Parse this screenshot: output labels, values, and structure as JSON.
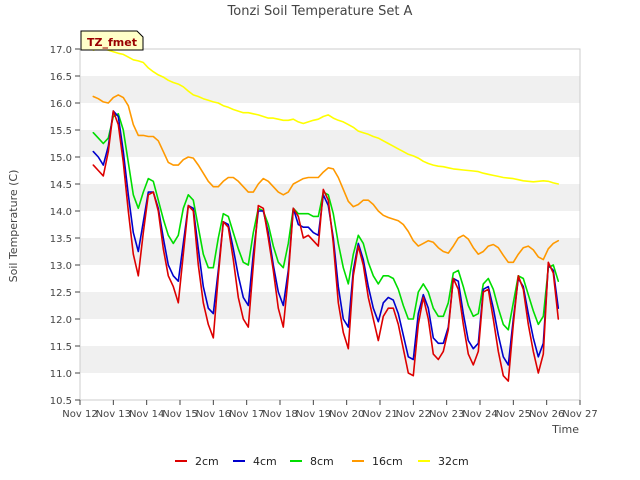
{
  "chart_data": {
    "type": "line",
    "title": "Tonzi Soil Temperature Set A",
    "xlabel": "Time",
    "ylabel": "Soil Temperature (C)",
    "xlim": [
      12,
      27
    ],
    "ylim": [
      10.5,
      17.0
    ],
    "x_ticks": [
      12,
      13,
      14,
      15,
      16,
      17,
      18,
      19,
      20,
      21,
      22,
      23,
      24,
      25,
      26,
      27
    ],
    "x_tick_labels": [
      "Nov 12",
      "Nov 13",
      "Nov 14",
      "Nov 15",
      "Nov 16",
      "Nov 17",
      "Nov 18",
      "Nov 19",
      "Nov 20",
      "Nov 21",
      "Nov 22",
      "Nov 23",
      "Nov 24",
      "Nov 25",
      "Nov 26",
      "Nov 27"
    ],
    "y_ticks": [
      10.5,
      11.0,
      11.5,
      12.0,
      12.5,
      13.0,
      13.5,
      14.0,
      14.5,
      15.0,
      15.5,
      16.0,
      16.5,
      17.0
    ],
    "y_tick_labels": [
      "10.5",
      "11.0",
      "11.5",
      "12.0",
      "12.5",
      "13.0",
      "13.5",
      "14.0",
      "14.5",
      "15.0",
      "15.5",
      "16.0",
      "16.5",
      "17.0"
    ],
    "grid": "horizontal alternating bands",
    "legend_position": "bottom-center",
    "annotation": "TZ_fmet",
    "series": [
      {
        "name": "2cm",
        "color": "#dd0000",
        "x": [
          12.4,
          12.55,
          12.7,
          12.85,
          13.0,
          13.15,
          13.3,
          13.45,
          13.6,
          13.75,
          13.9,
          14.05,
          14.2,
          14.35,
          14.5,
          14.65,
          14.8,
          14.95,
          15.1,
          15.25,
          15.4,
          15.55,
          15.7,
          15.85,
          16.0,
          16.15,
          16.3,
          16.45,
          16.6,
          16.75,
          16.9,
          17.05,
          17.2,
          17.35,
          17.5,
          17.65,
          17.8,
          17.95,
          18.1,
          18.25,
          18.4,
          18.55,
          18.7,
          18.85,
          19.0,
          19.15,
          19.3,
          19.45,
          19.6,
          19.75,
          19.9,
          20.05,
          20.2,
          20.35,
          20.5,
          20.65,
          20.8,
          20.95,
          21.1,
          21.25,
          21.4,
          21.55,
          21.7,
          21.85,
          22.0,
          22.15,
          22.3,
          22.45,
          22.6,
          22.75,
          22.9,
          23.05,
          23.2,
          23.35,
          23.5,
          23.65,
          23.8,
          23.95,
          24.1,
          24.25,
          24.4,
          24.55,
          24.7,
          24.85,
          25.0,
          25.15,
          25.3,
          25.45,
          25.6,
          25.75,
          25.9,
          26.05,
          26.2,
          26.35
        ],
        "values": [
          14.85,
          14.75,
          14.65,
          15.1,
          15.85,
          15.6,
          14.9,
          14.0,
          13.2,
          12.8,
          13.6,
          14.3,
          14.35,
          14.0,
          13.3,
          12.8,
          12.6,
          12.3,
          13.2,
          14.1,
          14.0,
          13.0,
          12.3,
          11.9,
          11.65,
          12.8,
          13.8,
          13.7,
          13.1,
          12.4,
          12.0,
          11.85,
          13.0,
          14.1,
          14.05,
          13.5,
          12.9,
          12.2,
          11.85,
          12.8,
          14.05,
          13.9,
          13.5,
          13.55,
          13.45,
          13.35,
          14.4,
          14.2,
          13.4,
          12.3,
          11.75,
          11.45,
          12.8,
          13.35,
          13.0,
          12.4,
          12.0,
          11.6,
          12.05,
          12.2,
          12.2,
          11.9,
          11.45,
          11.0,
          10.95,
          11.9,
          12.4,
          12.0,
          11.35,
          11.25,
          11.4,
          11.8,
          12.75,
          12.55,
          11.9,
          11.35,
          11.15,
          11.4,
          12.5,
          12.55,
          12.0,
          11.4,
          10.95,
          10.85,
          11.9,
          12.8,
          12.55,
          11.9,
          11.4,
          11.0,
          11.35,
          13.05,
          12.85,
          12.0
        ]
      },
      {
        "name": "4cm",
        "color": "#0000cc",
        "x": [
          12.4,
          12.55,
          12.7,
          12.85,
          13.0,
          13.15,
          13.3,
          13.45,
          13.6,
          13.75,
          13.9,
          14.05,
          14.2,
          14.35,
          14.5,
          14.65,
          14.8,
          14.95,
          15.1,
          15.25,
          15.4,
          15.55,
          15.7,
          15.85,
          16.0,
          16.15,
          16.3,
          16.45,
          16.6,
          16.75,
          16.9,
          17.05,
          17.2,
          17.35,
          17.5,
          17.65,
          17.8,
          17.95,
          18.1,
          18.25,
          18.4,
          18.55,
          18.7,
          18.85,
          19.0,
          19.15,
          19.3,
          19.45,
          19.6,
          19.75,
          19.9,
          20.05,
          20.2,
          20.35,
          20.5,
          20.65,
          20.8,
          20.95,
          21.1,
          21.25,
          21.4,
          21.55,
          21.7,
          21.85,
          22.0,
          22.15,
          22.3,
          22.45,
          22.6,
          22.75,
          22.9,
          23.05,
          23.2,
          23.35,
          23.5,
          23.65,
          23.8,
          23.95,
          24.1,
          24.25,
          24.4,
          24.55,
          24.7,
          24.85,
          25.0,
          25.15,
          25.3,
          25.45,
          25.6,
          25.75,
          25.9,
          26.05,
          26.2,
          26.35
        ],
        "values": [
          15.1,
          15.0,
          14.85,
          15.2,
          15.85,
          15.75,
          15.1,
          14.3,
          13.6,
          13.25,
          13.8,
          14.35,
          14.35,
          14.05,
          13.5,
          13.0,
          12.8,
          12.7,
          13.4,
          14.1,
          14.05,
          13.3,
          12.6,
          12.2,
          12.1,
          12.9,
          13.8,
          13.75,
          13.3,
          12.8,
          12.4,
          12.25,
          13.2,
          14.0,
          14.0,
          13.6,
          13.0,
          12.5,
          12.25,
          12.9,
          14.05,
          13.75,
          13.7,
          13.7,
          13.6,
          13.55,
          14.3,
          14.1,
          13.5,
          12.6,
          12.0,
          11.85,
          12.9,
          13.4,
          13.1,
          12.6,
          12.2,
          11.95,
          12.3,
          12.4,
          12.35,
          12.1,
          11.7,
          11.3,
          11.25,
          12.1,
          12.45,
          12.2,
          11.65,
          11.55,
          11.55,
          11.85,
          12.75,
          12.7,
          12.1,
          11.6,
          11.45,
          11.55,
          12.55,
          12.6,
          12.2,
          11.7,
          11.3,
          11.15,
          12.0,
          12.75,
          12.6,
          12.1,
          11.65,
          11.3,
          11.55,
          13.0,
          12.9,
          12.2
        ]
      },
      {
        "name": "8cm",
        "color": "#00dd00",
        "x": [
          12.4,
          12.55,
          12.7,
          12.85,
          13.0,
          13.15,
          13.3,
          13.45,
          13.6,
          13.75,
          13.9,
          14.05,
          14.2,
          14.35,
          14.5,
          14.65,
          14.8,
          14.95,
          15.1,
          15.25,
          15.4,
          15.55,
          15.7,
          15.85,
          16.0,
          16.15,
          16.3,
          16.45,
          16.6,
          16.75,
          16.9,
          17.05,
          17.2,
          17.35,
          17.5,
          17.65,
          17.8,
          17.95,
          18.1,
          18.25,
          18.4,
          18.55,
          18.7,
          18.85,
          19.0,
          19.15,
          19.3,
          19.45,
          19.6,
          19.75,
          19.9,
          20.05,
          20.2,
          20.35,
          20.5,
          20.65,
          20.8,
          20.95,
          21.1,
          21.25,
          21.4,
          21.55,
          21.7,
          21.85,
          22.0,
          22.15,
          22.3,
          22.45,
          22.6,
          22.75,
          22.9,
          23.05,
          23.2,
          23.35,
          23.5,
          23.65,
          23.8,
          23.95,
          24.1,
          24.25,
          24.4,
          24.55,
          24.7,
          24.85,
          25.0,
          25.15,
          25.3,
          25.45,
          25.6,
          25.75,
          25.9,
          26.05,
          26.2,
          26.35
        ],
        "values": [
          15.45,
          15.35,
          15.25,
          15.35,
          15.75,
          15.8,
          15.5,
          14.9,
          14.3,
          14.05,
          14.35,
          14.6,
          14.55,
          14.2,
          13.85,
          13.55,
          13.4,
          13.55,
          14.05,
          14.3,
          14.2,
          13.7,
          13.2,
          12.95,
          12.95,
          13.5,
          13.95,
          13.9,
          13.6,
          13.3,
          13.05,
          13.0,
          13.6,
          14.05,
          14.0,
          13.75,
          13.35,
          13.05,
          12.95,
          13.4,
          14.05,
          13.95,
          13.95,
          13.95,
          13.9,
          13.9,
          14.35,
          14.3,
          13.95,
          13.4,
          12.95,
          12.65,
          13.2,
          13.55,
          13.4,
          13.05,
          12.8,
          12.65,
          12.8,
          12.8,
          12.75,
          12.55,
          12.25,
          12.0,
          12.0,
          12.5,
          12.65,
          12.5,
          12.2,
          12.05,
          12.05,
          12.3,
          12.85,
          12.9,
          12.6,
          12.25,
          12.05,
          12.1,
          12.65,
          12.75,
          12.55,
          12.2,
          11.9,
          11.8,
          12.3,
          12.8,
          12.75,
          12.45,
          12.15,
          11.9,
          12.05,
          12.95,
          13.0,
          12.7
        ]
      },
      {
        "name": "16cm",
        "color": "#ff9900",
        "x": [
          12.4,
          12.55,
          12.7,
          12.85,
          13.0,
          13.15,
          13.3,
          13.45,
          13.6,
          13.75,
          13.9,
          14.05,
          14.2,
          14.35,
          14.5,
          14.65,
          14.8,
          14.95,
          15.1,
          15.25,
          15.4,
          15.55,
          15.7,
          15.85,
          16.0,
          16.15,
          16.3,
          16.45,
          16.6,
          16.75,
          16.9,
          17.05,
          17.2,
          17.35,
          17.5,
          17.65,
          17.8,
          17.95,
          18.1,
          18.25,
          18.4,
          18.55,
          18.7,
          18.85,
          19.0,
          19.15,
          19.3,
          19.45,
          19.6,
          19.75,
          19.9,
          20.05,
          20.2,
          20.35,
          20.5,
          20.65,
          20.8,
          20.95,
          21.1,
          21.25,
          21.4,
          21.55,
          21.7,
          21.85,
          22.0,
          22.15,
          22.3,
          22.45,
          22.6,
          22.75,
          22.9,
          23.05,
          23.2,
          23.35,
          23.5,
          23.65,
          23.8,
          23.95,
          24.1,
          24.25,
          24.4,
          24.55,
          24.7,
          24.85,
          25.0,
          25.15,
          25.3,
          25.45,
          25.6,
          25.75,
          25.9,
          26.05,
          26.2,
          26.35
        ],
        "values": [
          16.12,
          16.08,
          16.02,
          16.0,
          16.1,
          16.15,
          16.1,
          15.95,
          15.6,
          15.4,
          15.4,
          15.38,
          15.38,
          15.3,
          15.1,
          14.9,
          14.85,
          14.85,
          14.95,
          15.0,
          14.98,
          14.85,
          14.7,
          14.55,
          14.45,
          14.45,
          14.55,
          14.62,
          14.62,
          14.55,
          14.45,
          14.35,
          14.35,
          14.5,
          14.6,
          14.55,
          14.45,
          14.35,
          14.3,
          14.35,
          14.5,
          14.55,
          14.6,
          14.62,
          14.62,
          14.62,
          14.72,
          14.8,
          14.78,
          14.62,
          14.4,
          14.18,
          14.08,
          14.12,
          14.2,
          14.2,
          14.12,
          14.0,
          13.92,
          13.88,
          13.85,
          13.82,
          13.75,
          13.62,
          13.45,
          13.35,
          13.4,
          13.45,
          13.42,
          13.32,
          13.25,
          13.22,
          13.35,
          13.5,
          13.55,
          13.48,
          13.32,
          13.2,
          13.25,
          13.35,
          13.38,
          13.32,
          13.18,
          13.05,
          13.05,
          13.2,
          13.32,
          13.35,
          13.28,
          13.15,
          13.1,
          13.3,
          13.4,
          13.45
        ]
      },
      {
        "name": "32cm",
        "color": "#ffff00",
        "x": [
          12.4,
          12.55,
          12.7,
          12.85,
          13.0,
          13.15,
          13.3,
          13.45,
          13.6,
          13.75,
          13.9,
          14.05,
          14.2,
          14.35,
          14.5,
          14.65,
          14.8,
          14.95,
          15.1,
          15.25,
          15.4,
          15.55,
          15.7,
          15.85,
          16.0,
          16.15,
          16.3,
          16.45,
          16.6,
          16.75,
          16.9,
          17.05,
          17.2,
          17.35,
          17.5,
          17.65,
          17.8,
          17.95,
          18.1,
          18.25,
          18.4,
          18.55,
          18.7,
          18.85,
          19.0,
          19.15,
          19.3,
          19.45,
          19.6,
          19.75,
          19.9,
          20.05,
          20.2,
          20.35,
          20.5,
          20.65,
          20.8,
          20.95,
          21.1,
          21.25,
          21.4,
          21.55,
          21.7,
          21.85,
          22.0,
          22.15,
          22.3,
          22.45,
          22.6,
          22.75,
          22.9,
          23.05,
          23.2,
          23.35,
          23.5,
          23.65,
          23.8,
          23.95,
          24.1,
          24.25,
          24.4,
          24.55,
          24.7,
          24.85,
          25.0,
          25.15,
          25.3,
          25.45,
          25.6,
          25.75,
          25.9,
          26.05,
          26.2,
          26.35
        ],
        "values": [
          16.98,
          17.0,
          17.0,
          16.98,
          16.95,
          16.92,
          16.9,
          16.85,
          16.8,
          16.78,
          16.75,
          16.65,
          16.58,
          16.52,
          16.48,
          16.42,
          16.38,
          16.35,
          16.3,
          16.22,
          16.15,
          16.12,
          16.08,
          16.05,
          16.02,
          16.0,
          15.95,
          15.92,
          15.88,
          15.85,
          15.82,
          15.82,
          15.8,
          15.78,
          15.75,
          15.72,
          15.72,
          15.7,
          15.68,
          15.68,
          15.7,
          15.65,
          15.62,
          15.65,
          15.68,
          15.7,
          15.75,
          15.78,
          15.72,
          15.68,
          15.65,
          15.6,
          15.55,
          15.48,
          15.45,
          15.42,
          15.38,
          15.35,
          15.3,
          15.25,
          15.2,
          15.15,
          15.1,
          15.05,
          15.02,
          14.98,
          14.92,
          14.88,
          14.85,
          14.83,
          14.82,
          14.8,
          14.78,
          14.77,
          14.76,
          14.75,
          14.74,
          14.73,
          14.7,
          14.68,
          14.66,
          14.64,
          14.62,
          14.61,
          14.6,
          14.58,
          14.56,
          14.55,
          14.54,
          14.55,
          14.56,
          14.55,
          14.52,
          14.5
        ]
      }
    ]
  }
}
